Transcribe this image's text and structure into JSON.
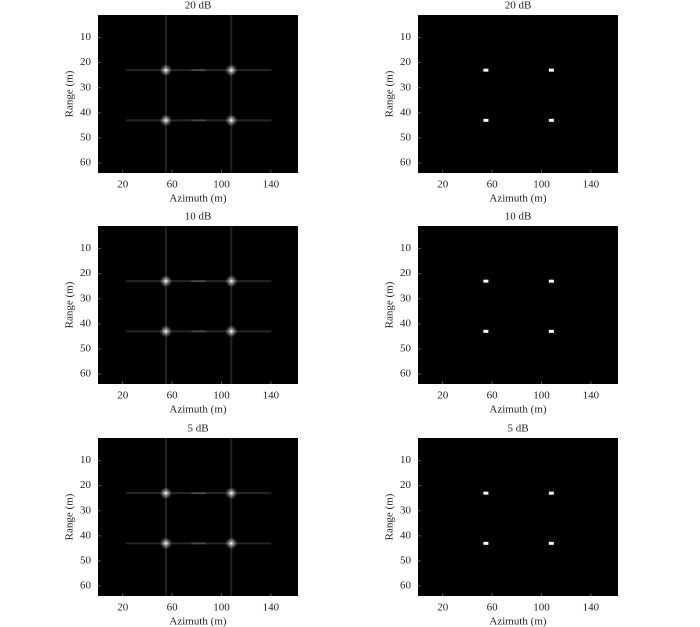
{
  "chart_data": [
    {
      "type": "image",
      "title": "20 dB",
      "xlabel": "Azimuth (m)",
      "ylabel": "Range (m)",
      "x": [
        55,
        108,
        55,
        108
      ],
      "y": [
        23,
        23,
        43,
        43
      ],
      "color": "#ffffff",
      "background": "#000000",
      "sidelobes": true,
      "xlim": [
        0,
        162
      ],
      "ylim": [
        1,
        64
      ],
      "y_inverted": true,
      "xticks": [
        20,
        60,
        100,
        140
      ],
      "yticks": [
        10,
        20,
        30,
        40,
        50,
        60
      ]
    },
    {
      "type": "image",
      "title": "20 dB",
      "xlabel": "Azimuth (m)",
      "ylabel": "Range (m)",
      "x": [
        55,
        108,
        55,
        108
      ],
      "y": [
        23,
        23,
        43,
        43
      ],
      "color": "#ffffff",
      "background": "#000000",
      "sidelobes": false,
      "xlim": [
        0,
        162
      ],
      "ylim": [
        1,
        64
      ],
      "y_inverted": true,
      "xticks": [
        20,
        60,
        100,
        140
      ],
      "yticks": [
        10,
        20,
        30,
        40,
        50,
        60
      ]
    },
    {
      "type": "image",
      "title": "10 dB",
      "xlabel": "Azimuth (m)",
      "ylabel": "Range (m)",
      "x": [
        55,
        108,
        55,
        108
      ],
      "y": [
        23,
        23,
        43,
        43
      ],
      "color": "#ffffff",
      "background": "#000000",
      "sidelobes": true,
      "xlim": [
        0,
        162
      ],
      "ylim": [
        1,
        64
      ],
      "y_inverted": true,
      "xticks": [
        20,
        60,
        100,
        140
      ],
      "yticks": [
        10,
        20,
        30,
        40,
        50,
        60
      ]
    },
    {
      "type": "image",
      "title": "10 dB",
      "xlabel": "Azimuth (m)",
      "ylabel": "Range (m)",
      "x": [
        55,
        108,
        55,
        108
      ],
      "y": [
        23,
        23,
        43,
        43
      ],
      "color": "#ffffff",
      "background": "#000000",
      "sidelobes": false,
      "xlim": [
        0,
        162
      ],
      "ylim": [
        1,
        64
      ],
      "y_inverted": true,
      "xticks": [
        20,
        60,
        100,
        140
      ],
      "yticks": [
        10,
        20,
        30,
        40,
        50,
        60
      ]
    },
    {
      "type": "image",
      "title": "5 dB",
      "xlabel": "Azimuth (m)",
      "ylabel": "Range (m)",
      "x": [
        55,
        108,
        55,
        108
      ],
      "y": [
        23,
        23,
        43,
        43
      ],
      "color": "#ffffff",
      "background": "#000000",
      "sidelobes": true,
      "xlim": [
        0,
        162
      ],
      "ylim": [
        1,
        64
      ],
      "y_inverted": true,
      "xticks": [
        20,
        60,
        100,
        140
      ],
      "yticks": [
        10,
        20,
        30,
        40,
        50,
        60
      ]
    },
    {
      "type": "image",
      "title": "5 dB",
      "xlabel": "Azimuth (m)",
      "ylabel": "Range (m)",
      "x": [
        55,
        108,
        55,
        108
      ],
      "y": [
        23,
        23,
        43,
        43
      ],
      "color": "#ffffff",
      "background": "#000000",
      "sidelobes": false,
      "xlim": [
        0,
        162
      ],
      "ylim": [
        1,
        64
      ],
      "y_inverted": true,
      "xticks": [
        20,
        60,
        100,
        140
      ],
      "yticks": [
        10,
        20,
        30,
        40,
        50,
        60
      ]
    }
  ]
}
